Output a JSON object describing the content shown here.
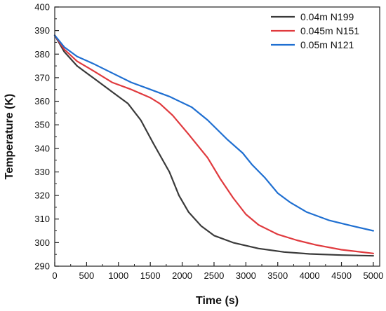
{
  "chart_data": {
    "type": "line",
    "title": "",
    "xlabel": "Time (s)",
    "ylabel": "Temperature (K)",
    "xlim": [
      0,
      5100
    ],
    "ylim": [
      290,
      400
    ],
    "x_ticks": [
      0,
      500,
      1000,
      1500,
      2000,
      2500,
      3000,
      3500,
      4000,
      4500,
      5000
    ],
    "y_ticks": [
      290,
      300,
      310,
      320,
      330,
      340,
      350,
      360,
      370,
      380,
      390,
      400
    ],
    "grid": false,
    "legend_position": "top-right",
    "series": [
      {
        "name": "0.04m N199",
        "color": "#3a3a3a",
        "points": [
          [
            0,
            388
          ],
          [
            150,
            381
          ],
          [
            350,
            375
          ],
          [
            600,
            370
          ],
          [
            900,
            364
          ],
          [
            1150,
            359
          ],
          [
            1350,
            352
          ],
          [
            1550,
            342
          ],
          [
            1800,
            330
          ],
          [
            1950,
            320
          ],
          [
            2100,
            313
          ],
          [
            2300,
            307
          ],
          [
            2500,
            303
          ],
          [
            2800,
            300
          ],
          [
            3200,
            297.5
          ],
          [
            3600,
            296
          ],
          [
            4000,
            295.2
          ],
          [
            4500,
            294.7
          ],
          [
            5000,
            294.4
          ]
        ]
      },
      {
        "name": "0.045m N151",
        "color": "#e03a3e",
        "points": [
          [
            0,
            388
          ],
          [
            150,
            382
          ],
          [
            350,
            377
          ],
          [
            600,
            373
          ],
          [
            900,
            368
          ],
          [
            1200,
            365
          ],
          [
            1500,
            361.5
          ],
          [
            1650,
            359
          ],
          [
            1850,
            354
          ],
          [
            2100,
            346
          ],
          [
            2400,
            336
          ],
          [
            2600,
            327
          ],
          [
            2800,
            319
          ],
          [
            3000,
            312
          ],
          [
            3200,
            307.5
          ],
          [
            3500,
            303.5
          ],
          [
            3800,
            301
          ],
          [
            4100,
            299
          ],
          [
            4500,
            297
          ],
          [
            5000,
            295.4
          ]
        ]
      },
      {
        "name": "0.05m N121",
        "color": "#1f6fd1",
        "points": [
          [
            0,
            388
          ],
          [
            150,
            383
          ],
          [
            350,
            379
          ],
          [
            600,
            376
          ],
          [
            900,
            372
          ],
          [
            1200,
            368
          ],
          [
            1500,
            365
          ],
          [
            1800,
            362
          ],
          [
            2150,
            357.5
          ],
          [
            2400,
            352
          ],
          [
            2700,
            344
          ],
          [
            2950,
            338
          ],
          [
            3100,
            333
          ],
          [
            3300,
            327.5
          ],
          [
            3500,
            321
          ],
          [
            3700,
            317
          ],
          [
            3950,
            313
          ],
          [
            4300,
            309.5
          ],
          [
            4600,
            307.5
          ],
          [
            5000,
            305
          ]
        ]
      }
    ]
  }
}
